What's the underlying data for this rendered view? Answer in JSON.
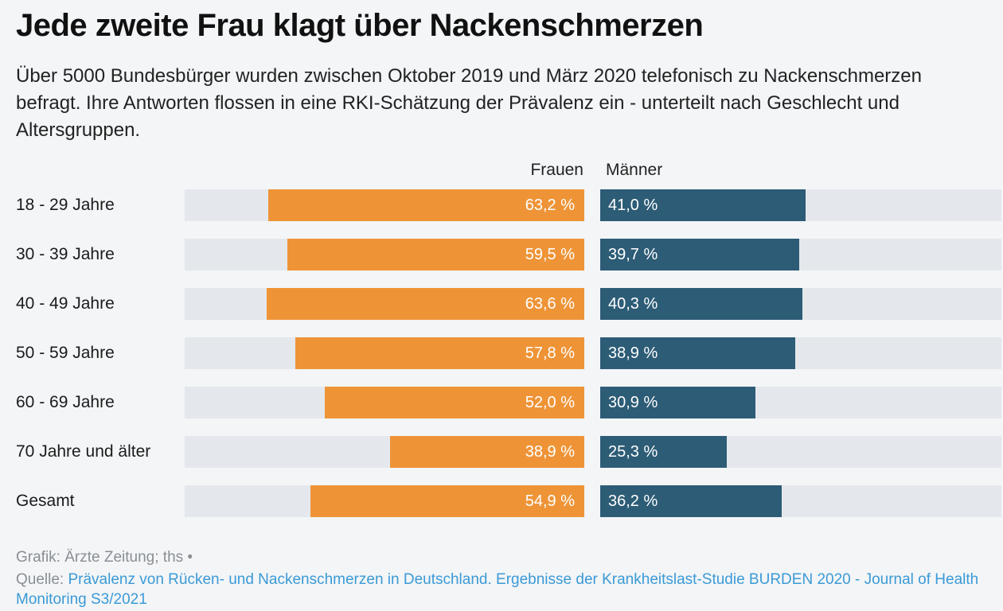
{
  "title": "Jede zweite Frau klagt über Nackenschmerzen",
  "subtitle": "Über 5000 Bundesbürger wurden zwischen Oktober 2019 und März 2020 telefonisch zu Nackenschmerzen befragt. Ihre Antworten flossen in eine RKI-Schätzung der Prävalenz ein - unterteilt nach Geschlecht und Altersgruppen.",
  "colors": {
    "frauen": "#ee9437",
    "maenner": "#2d5c76",
    "track": "#e4e8ec",
    "link": "#3b9ad6"
  },
  "chart_data": {
    "type": "bar",
    "orientation": "horizontal",
    "unit": "%",
    "xlim": [
      0,
      80
    ],
    "series_labels": {
      "frauen": "Frauen",
      "maenner": "Männer"
    },
    "categories": [
      "18 - 29 Jahre",
      "30 - 39 Jahre",
      "40 - 49 Jahre",
      "50 - 59 Jahre",
      "60 - 69 Jahre",
      "70 Jahre und älter",
      "Gesamt"
    ],
    "series": [
      {
        "name": "Frauen",
        "values": [
          63.2,
          59.5,
          63.6,
          57.8,
          52.0,
          38.9,
          54.9
        ],
        "labels": [
          "63,2 %",
          "59,5 %",
          "63,6 %",
          "57,8 %",
          "52,0 %",
          "38,9 %",
          "54,9 %"
        ]
      },
      {
        "name": "Männer",
        "values": [
          41.0,
          39.7,
          40.3,
          38.9,
          30.9,
          25.3,
          36.2
        ],
        "labels": [
          "41,0 %",
          "39,7 %",
          "40,3 %",
          "38,9 %",
          "30,9 %",
          "25,3 %",
          "36,2 %"
        ]
      }
    ]
  },
  "footer": {
    "credit": "Grafik: Ärzte Zeitung; ths •",
    "source_prefix": "Quelle: ",
    "source_link": "Prävalenz von Rücken- und Nackenschmerzen in Deutschland. Ergebnisse der Krankheitslast-Studie BURDEN 2020 - Journal of Health Monitoring S3/2021"
  }
}
